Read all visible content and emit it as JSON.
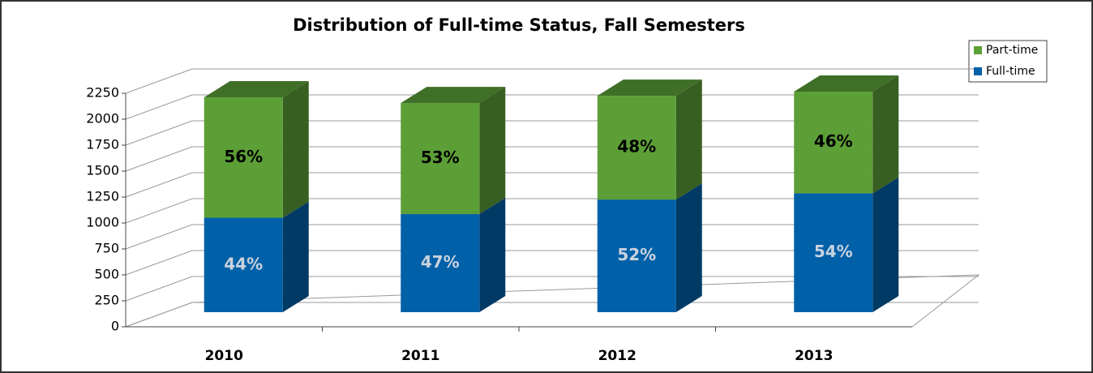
{
  "chart_data": {
    "type": "bar3d_stacked",
    "title": "Distribution of Full-time Status, Fall Semesters",
    "categories": [
      "2010",
      "2011",
      "2012",
      "2013"
    ],
    "series": [
      {
        "name": "Full-time",
        "color": "#0060a8",
        "values": [
          910,
          945,
          1085,
          1145
        ],
        "data_labels": [
          "44%",
          "47%",
          "52%",
          "54%"
        ],
        "label_color": "#c9d2de"
      },
      {
        "name": "Part-time",
        "color": "#5c9f37",
        "values": [
          1160,
          1070,
          1000,
          980
        ],
        "data_labels": [
          "56%",
          "53%",
          "48%",
          "46%"
        ],
        "label_color": "#000000"
      }
    ],
    "ylim": [
      0,
      2250
    ],
    "yticks": [
      0,
      250,
      500,
      750,
      1000,
      1250,
      1500,
      1750,
      2000,
      2250
    ],
    "grid": true,
    "legend": "top-right"
  }
}
